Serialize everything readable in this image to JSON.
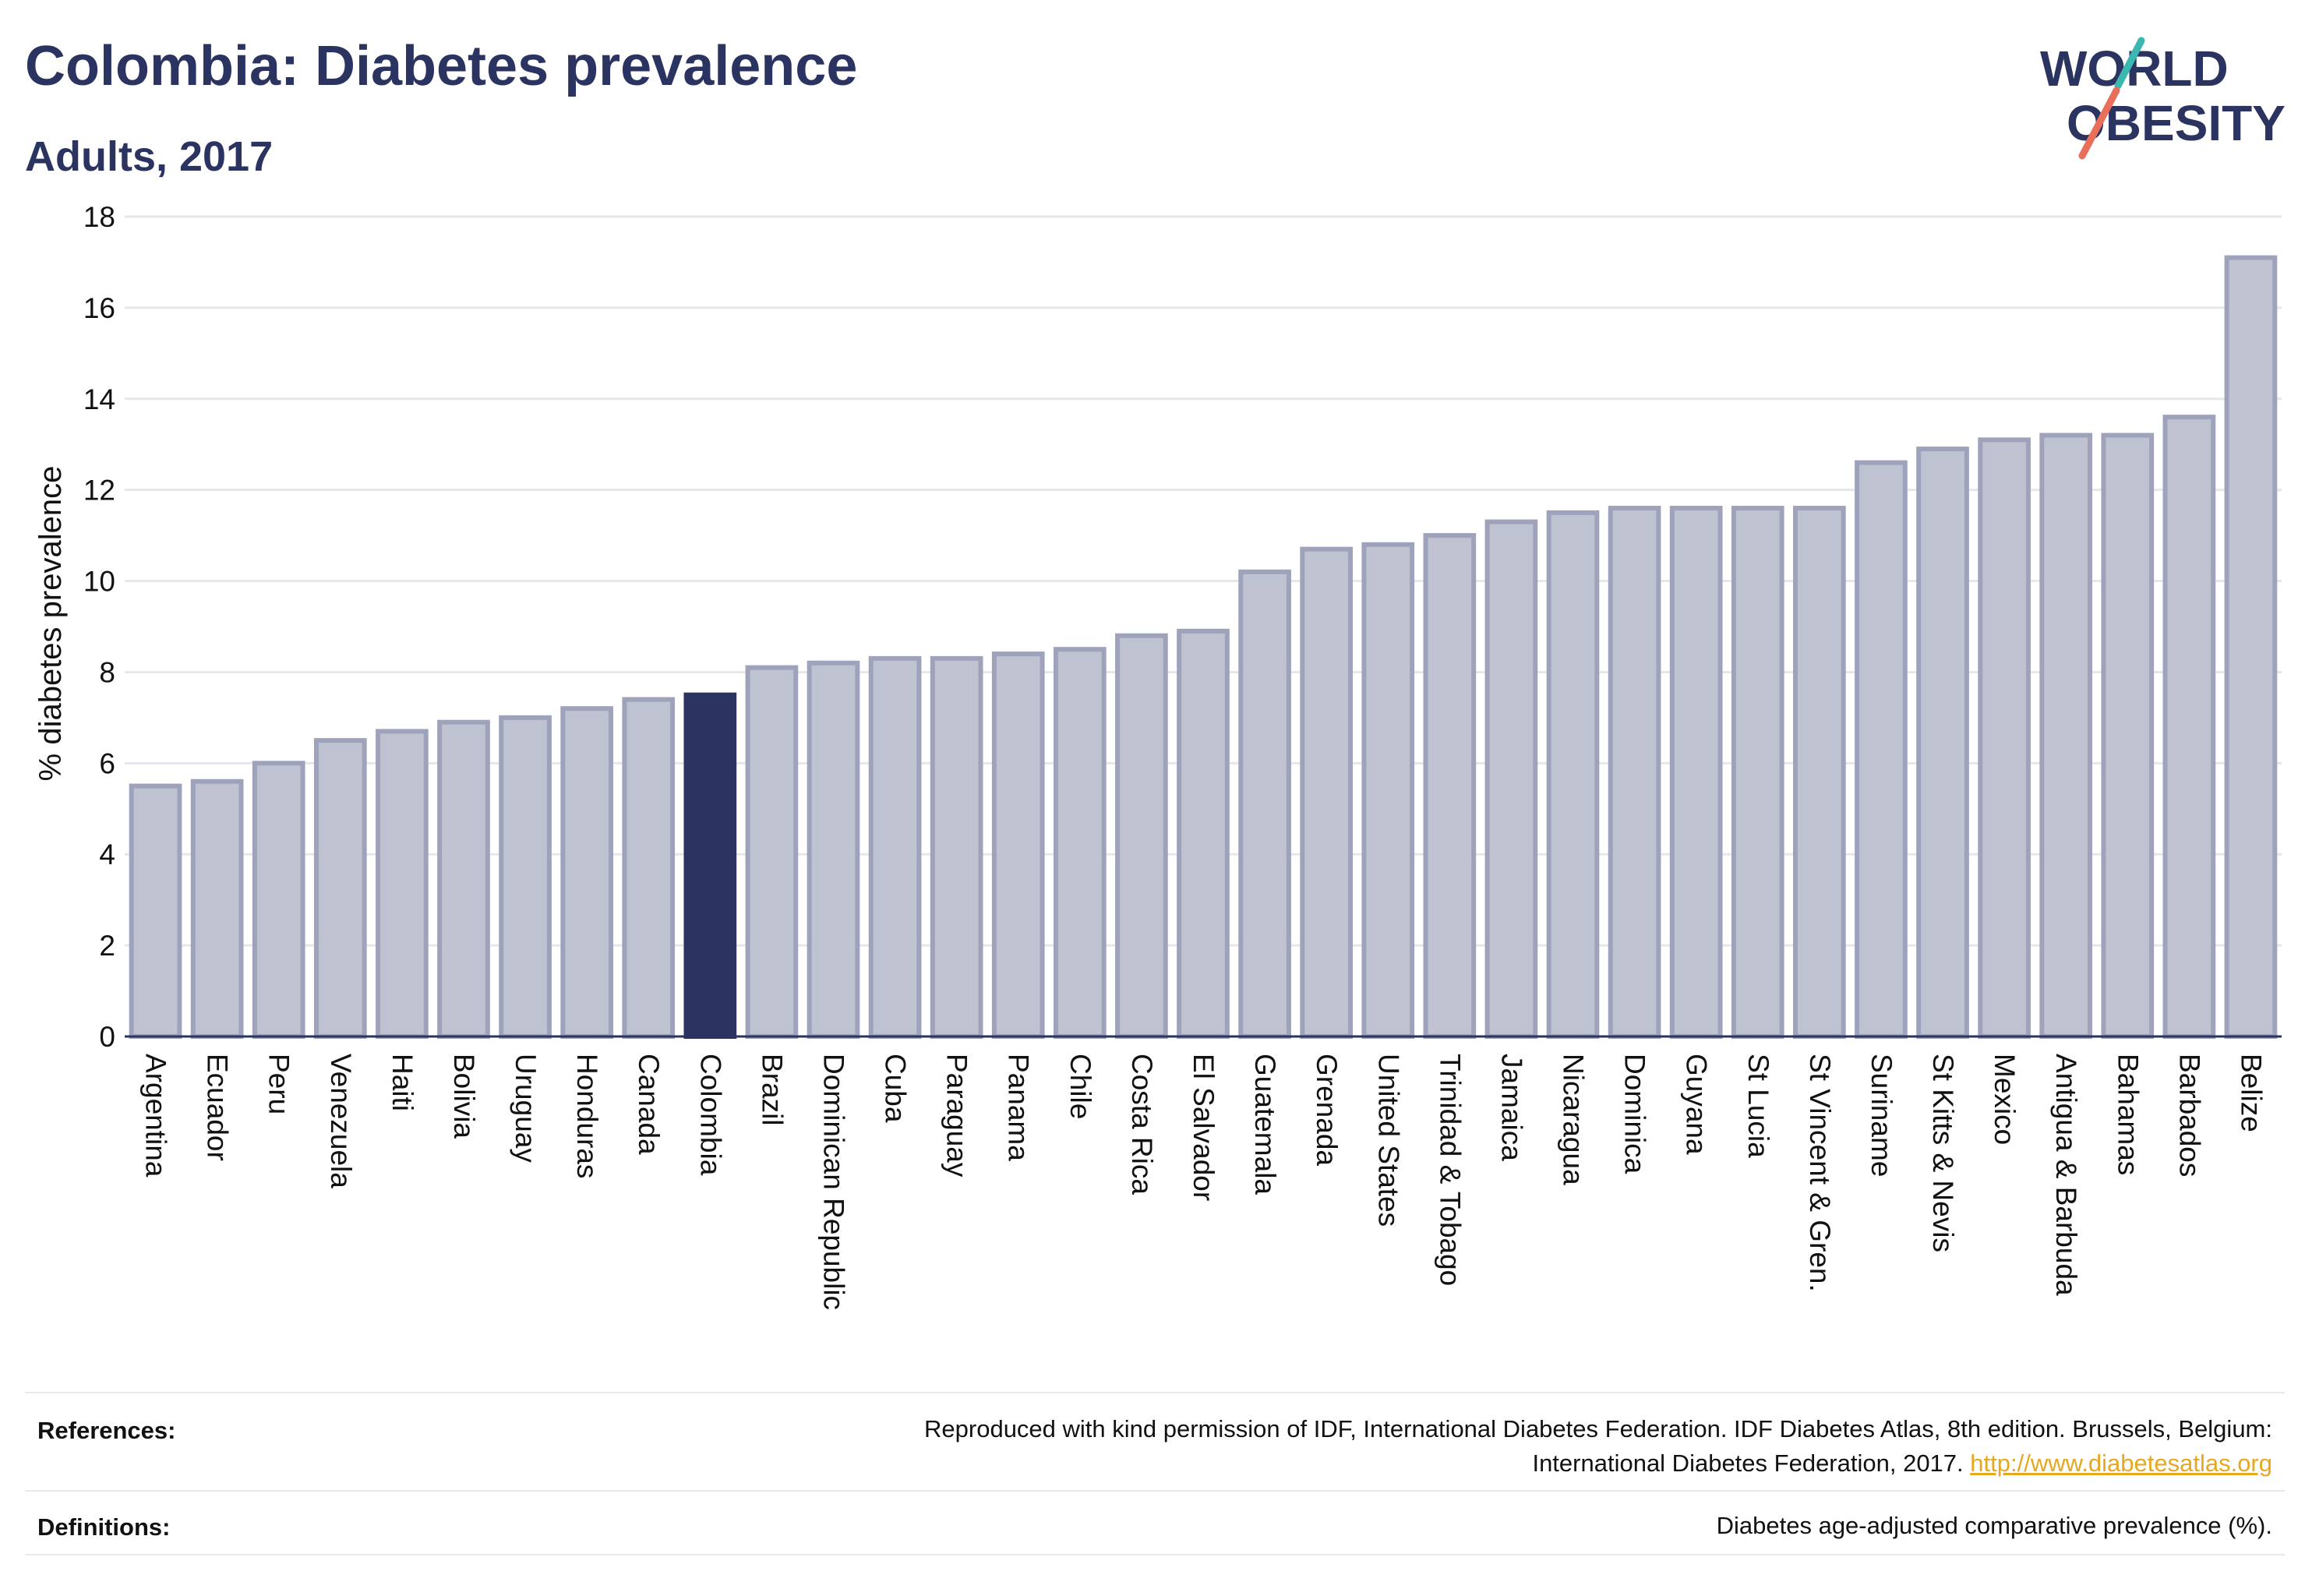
{
  "header": {
    "title": "Colombia: Diabetes prevalence",
    "subtitle": "Adults, 2017"
  },
  "logo": {
    "line1": "WORLD",
    "line2": "OBESITY",
    "text_color": "#2b3461",
    "accent_teal": "#3bb8b0",
    "accent_coral": "#e8705a"
  },
  "chart_data": {
    "type": "bar",
    "ylabel": "% diabetes prevalence",
    "ylim": [
      0,
      18
    ],
    "yticks": [
      0,
      2,
      4,
      6,
      8,
      10,
      12,
      14,
      16,
      18
    ],
    "grid": true,
    "highlight": "Colombia",
    "colors": {
      "bar": "#bfc2d0",
      "bar_edge": "#9ea3bb",
      "highlight": "#2b3461"
    },
    "categories": [
      "Argentina",
      "Ecuador",
      "Peru",
      "Venezuela",
      "Haiti",
      "Bolivia",
      "Uruguay",
      "Honduras",
      "Canada",
      "Colombia",
      "Brazil",
      "Dominican Republic",
      "Cuba",
      "Paraguay",
      "Panama",
      "Chile",
      "Costa Rica",
      "El Salvador",
      "Guatemala",
      "Grenada",
      "United States",
      "Trinidad & Tobago",
      "Jamaica",
      "Nicaragua",
      "Dominica",
      "Guyana",
      "St Lucia",
      "St Vincent & Gren.",
      "Suriname",
      "St Kitts & Nevis",
      "Mexico",
      "Antigua & Barbuda",
      "Bahamas",
      "Barbados",
      "Belize"
    ],
    "values": [
      5.5,
      5.6,
      6.0,
      6.5,
      6.7,
      6.9,
      7.0,
      7.2,
      7.4,
      7.5,
      8.1,
      8.2,
      8.3,
      8.3,
      8.4,
      8.5,
      8.8,
      8.9,
      10.2,
      10.7,
      10.8,
      11.0,
      11.3,
      11.5,
      11.6,
      11.6,
      11.6,
      11.6,
      12.6,
      12.9,
      13.1,
      13.2,
      13.2,
      13.6,
      17.1
    ]
  },
  "footer": {
    "references_label": "References:",
    "references_text_line1": "Reproduced with kind permission of IDF, International Diabetes Federation. IDF Diabetes Atlas, 8th edition. Brussels, Belgium:",
    "references_text_line2": "International Diabetes Federation, 2017.",
    "references_link": "http://www.diabetesatlas.org",
    "definitions_label": "Definitions:",
    "definitions_text": "Diabetes age-adjusted comparative prevalence (%)."
  }
}
